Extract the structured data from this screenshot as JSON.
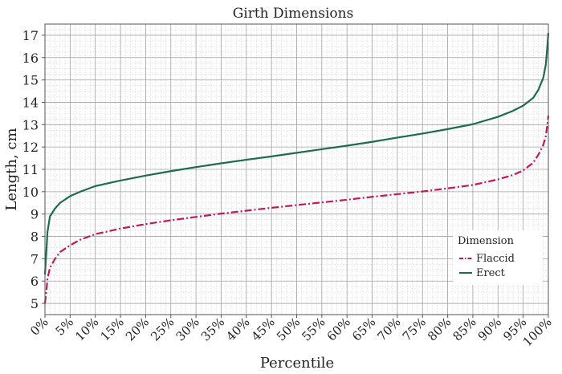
{
  "chart_data": {
    "type": "line",
    "title": "Girth Dimensions",
    "xlabel": "Percentile",
    "ylabel": "Length, cm",
    "xlim": [
      0,
      100
    ],
    "ylim": [
      4.5,
      17.5
    ],
    "x_ticks": [
      "0%",
      "5%",
      "10%",
      "15%",
      "20%",
      "25%",
      "30%",
      "35%",
      "40%",
      "45%",
      "50%",
      "55%",
      "60%",
      "65%",
      "70%",
      "75%",
      "80%",
      "85%",
      "90%",
      "95%",
      "100%"
    ],
    "y_ticks": [
      "5",
      "6",
      "7",
      "8",
      "9",
      "10",
      "11",
      "12",
      "13",
      "14",
      "15",
      "16",
      "17"
    ],
    "grid": true,
    "legend": {
      "title": "Dimension",
      "placement": "bottom-right"
    },
    "series": [
      {
        "name": "Flaccid",
        "color": "#c0185a",
        "style": "dashed",
        "x": [
          0,
          0.3,
          0.5,
          1,
          2,
          3,
          5,
          7,
          10,
          15,
          20,
          25,
          30,
          35,
          40,
          45,
          50,
          55,
          60,
          65,
          70,
          75,
          80,
          85,
          90,
          93,
          95,
          97,
          98,
          99,
          99.5,
          99.8,
          100
        ],
        "y": [
          5.0,
          5.6,
          6.1,
          6.6,
          7.0,
          7.3,
          7.6,
          7.85,
          8.1,
          8.35,
          8.55,
          8.72,
          8.87,
          9.02,
          9.15,
          9.28,
          9.4,
          9.52,
          9.64,
          9.77,
          9.89,
          10.01,
          10.15,
          10.3,
          10.55,
          10.75,
          10.95,
          11.3,
          11.65,
          12.1,
          12.5,
          13.0,
          13.4
        ]
      },
      {
        "name": "Erect",
        "color": "#1e6b52",
        "style": "solid",
        "x": [
          0,
          0.3,
          0.5,
          1,
          2,
          3,
          5,
          7,
          10,
          15,
          20,
          25,
          30,
          35,
          40,
          45,
          50,
          55,
          60,
          65,
          70,
          75,
          80,
          85,
          90,
          93,
          95,
          97,
          98,
          99,
          99.5,
          99.8,
          100
        ],
        "y": [
          6.3,
          7.4,
          8.2,
          8.9,
          9.25,
          9.5,
          9.8,
          10.0,
          10.25,
          10.5,
          10.72,
          10.92,
          11.1,
          11.27,
          11.43,
          11.58,
          11.74,
          11.9,
          12.06,
          12.23,
          12.42,
          12.6,
          12.8,
          13.02,
          13.35,
          13.62,
          13.85,
          14.2,
          14.55,
          15.1,
          15.7,
          16.5,
          17.1
        ]
      }
    ]
  }
}
